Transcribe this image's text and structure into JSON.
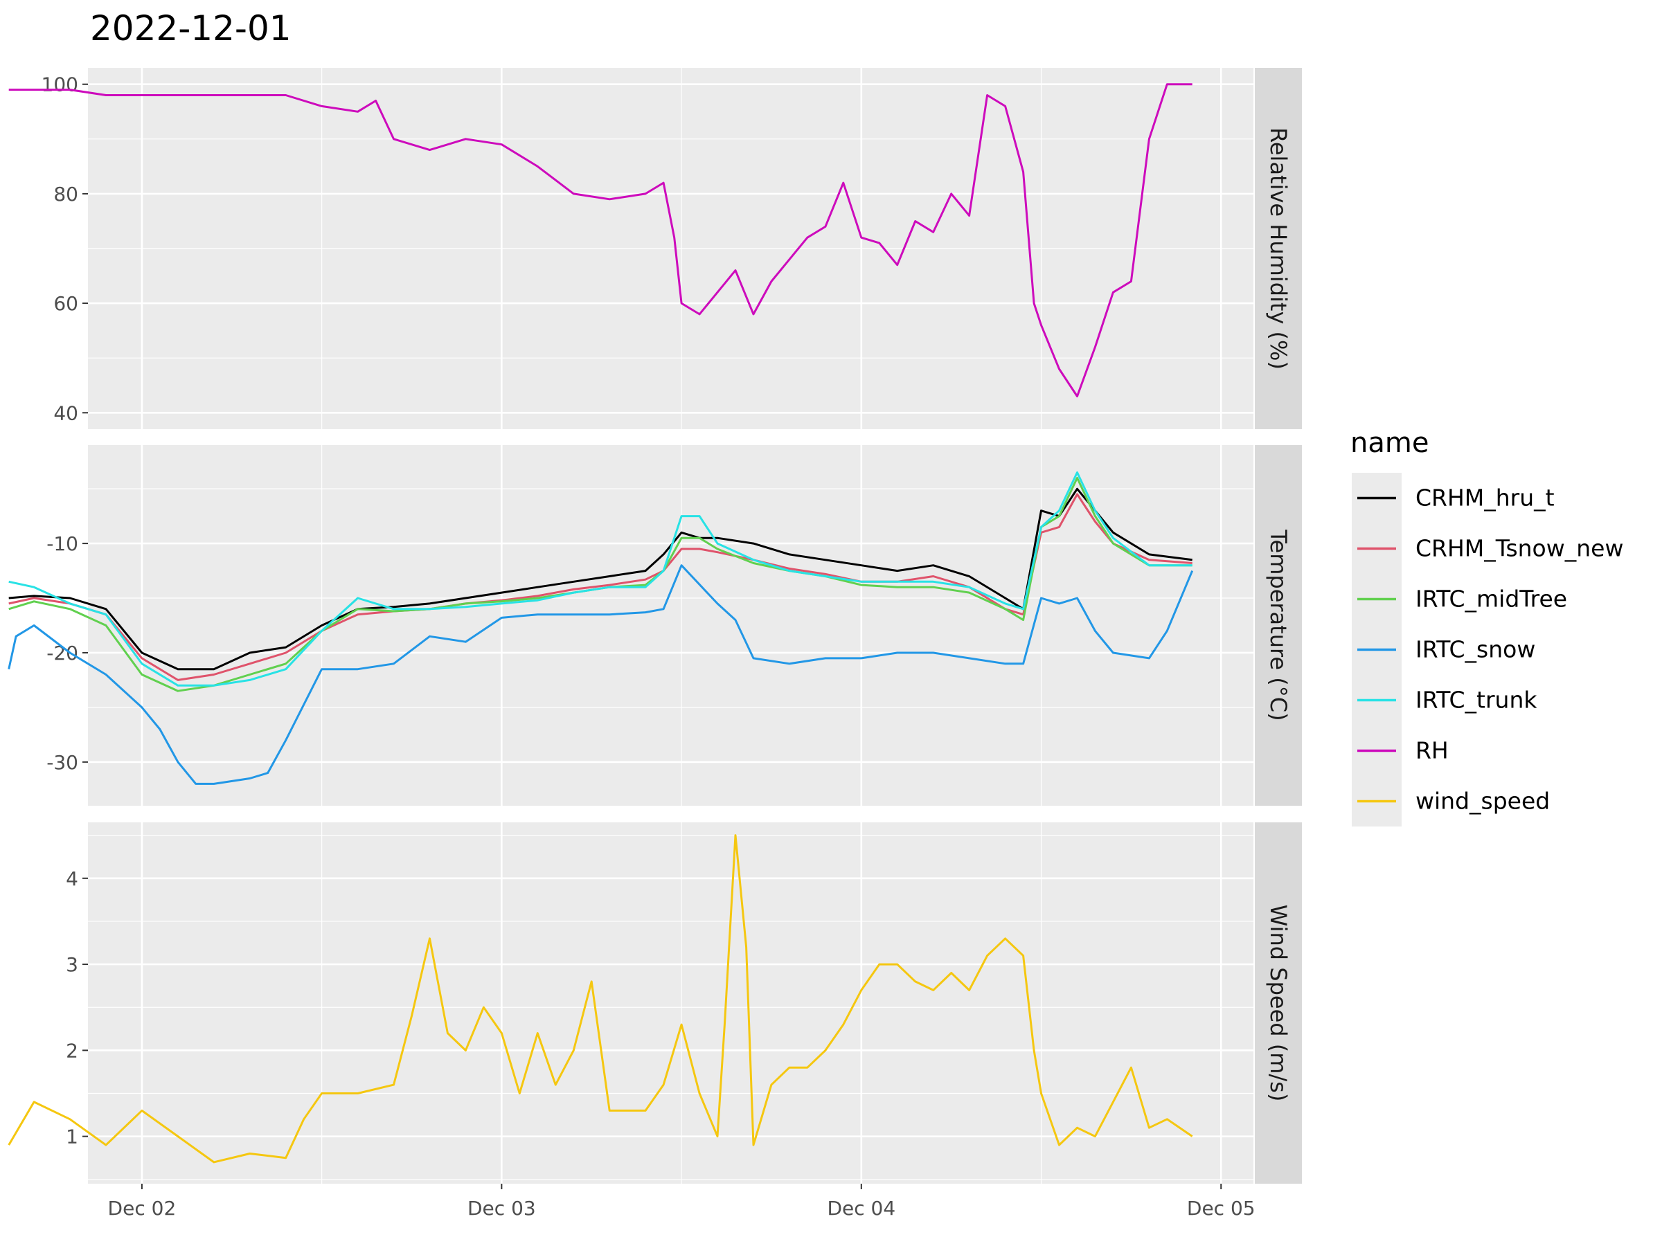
{
  "chart_data": {
    "type": "line",
    "title": "2022-12-01",
    "x_unit": "day",
    "x_ticks": [
      {
        "x": 2,
        "label": "Dec 02"
      },
      {
        "x": 3,
        "label": "Dec 03"
      },
      {
        "x": 4,
        "label": "Dec 04"
      },
      {
        "x": 5,
        "label": "Dec 05"
      }
    ],
    "xlim": [
      1.85,
      5.09
    ],
    "legend": {
      "title": "name",
      "position": "right"
    },
    "series_colors": {
      "CRHM_hru_t": "#000000",
      "CRHM_Tsnow_new": "#DF536B",
      "IRTC_midTree": "#61D04F",
      "IRTC_snow": "#2297E6",
      "IRTC_trunk": "#28E2E5",
      "RH": "#CD0BBC",
      "wind_speed": "#F5C710"
    },
    "legend_order": [
      "CRHM_hru_t",
      "CRHM_Tsnow_new",
      "IRTC_midTree",
      "IRTC_snow",
      "IRTC_trunk",
      "RH",
      "wind_speed"
    ],
    "panels": [
      {
        "strip": "Relative Humidity (%)",
        "ylim": [
          37,
          103
        ],
        "y_ticks": [
          40,
          60,
          80,
          100
        ],
        "series": [
          {
            "name": "RH",
            "x": [
              1.63,
              1.7,
              1.8,
              1.9,
              2.0,
              2.2,
              2.4,
              2.5,
              2.6,
              2.65,
              2.7,
              2.75,
              2.8,
              2.9,
              3.0,
              3.1,
              3.2,
              3.3,
              3.4,
              3.45,
              3.48,
              3.5,
              3.55,
              3.6,
              3.65,
              3.7,
              3.75,
              3.8,
              3.85,
              3.9,
              3.95,
              4.0,
              4.05,
              4.1,
              4.15,
              4.2,
              4.25,
              4.3,
              4.35,
              4.4,
              4.45,
              4.48,
              4.5,
              4.55,
              4.6,
              4.65,
              4.7,
              4.75,
              4.8,
              4.85,
              4.92
            ],
            "y": [
              99,
              99,
              99,
              98,
              98,
              98,
              98,
              96,
              95,
              97,
              90,
              89,
              88,
              90,
              89,
              85,
              80,
              79,
              80,
              82,
              72,
              60,
              58,
              62,
              66,
              58,
              64,
              68,
              72,
              74,
              82,
              72,
              71,
              67,
              75,
              73,
              80,
              76,
              98,
              96,
              84,
              60,
              56,
              48,
              43,
              52,
              62,
              64,
              90,
              100,
              100
            ]
          }
        ]
      },
      {
        "strip": "Temperature (°C)",
        "ylim": [
          -34,
          -1
        ],
        "y_ticks": [
          -30,
          -20,
          -10
        ],
        "series": [
          {
            "name": "CRHM_hru_t",
            "x": [
              1.63,
              1.7,
              1.8,
              1.9,
              2.0,
              2.1,
              2.2,
              2.3,
              2.4,
              2.5,
              2.6,
              2.7,
              2.8,
              2.9,
              3.0,
              3.1,
              3.2,
              3.3,
              3.4,
              3.45,
              3.5,
              3.55,
              3.6,
              3.7,
              3.8,
              3.9,
              4.0,
              4.1,
              4.2,
              4.3,
              4.4,
              4.45,
              4.5,
              4.55,
              4.6,
              4.65,
              4.7,
              4.8,
              4.92
            ],
            "y": [
              -15,
              -14.8,
              -15,
              -16,
              -20,
              -21.5,
              -21.5,
              -20,
              -19.5,
              -17.5,
              -16,
              -15.8,
              -15.5,
              -15,
              -14.5,
              -14,
              -13.5,
              -13,
              -12.5,
              -11,
              -9,
              -9.5,
              -9.5,
              -10,
              -11,
              -11.5,
              -12,
              -12.5,
              -12,
              -13,
              -15,
              -16,
              -7,
              -7.5,
              -5,
              -7,
              -9,
              -11,
              -11.5
            ]
          },
          {
            "name": "CRHM_Tsnow_new",
            "x": [
              1.63,
              1.7,
              1.8,
              1.9,
              2.0,
              2.1,
              2.2,
              2.3,
              2.4,
              2.5,
              2.6,
              2.7,
              2.8,
              2.9,
              3.0,
              3.1,
              3.2,
              3.3,
              3.4,
              3.45,
              3.5,
              3.55,
              3.6,
              3.7,
              3.8,
              3.9,
              4.0,
              4.1,
              4.2,
              4.3,
              4.4,
              4.45,
              4.5,
              4.55,
              4.6,
              4.65,
              4.7,
              4.8,
              4.92
            ],
            "y": [
              -15.5,
              -15,
              -15.5,
              -16.5,
              -20.5,
              -22.5,
              -22,
              -21,
              -20,
              -18,
              -16.5,
              -16.2,
              -16,
              -15.5,
              -15.2,
              -14.8,
              -14.2,
              -13.8,
              -13.3,
              -12.5,
              -10.5,
              -10.5,
              -10.8,
              -11.5,
              -12.3,
              -12.8,
              -13.5,
              -13.5,
              -13,
              -14,
              -16,
              -16.5,
              -9,
              -8.5,
              -5.5,
              -8,
              -10,
              -11.5,
              -11.8
            ]
          },
          {
            "name": "IRTC_midTree",
            "x": [
              1.63,
              1.7,
              1.8,
              1.9,
              2.0,
              2.1,
              2.2,
              2.3,
              2.4,
              2.5,
              2.6,
              2.7,
              2.8,
              2.9,
              3.0,
              3.1,
              3.2,
              3.3,
              3.4,
              3.45,
              3.5,
              3.55,
              3.6,
              3.7,
              3.8,
              3.9,
              4.0,
              4.1,
              4.2,
              4.3,
              4.4,
              4.45,
              4.5,
              4.55,
              4.6,
              4.65,
              4.7,
              4.8,
              4.92
            ],
            "y": [
              -16,
              -15.3,
              -16,
              -17.5,
              -22,
              -23.5,
              -23,
              -22,
              -21,
              -18,
              -16,
              -16.2,
              -16,
              -15.5,
              -15.3,
              -15,
              -14.5,
              -14,
              -13.8,
              -12.5,
              -9.5,
              -9.5,
              -10.5,
              -11.8,
              -12.5,
              -13,
              -13.8,
              -14,
              -14,
              -14.5,
              -16,
              -17,
              -8.5,
              -7.5,
              -4,
              -7.5,
              -10,
              -12,
              -12
            ]
          },
          {
            "name": "IRTC_snow",
            "x": [
              1.63,
              1.65,
              1.7,
              1.8,
              1.9,
              2.0,
              2.05,
              2.1,
              2.15,
              2.2,
              2.3,
              2.35,
              2.4,
              2.5,
              2.6,
              2.7,
              2.8,
              2.9,
              3.0,
              3.1,
              3.2,
              3.3,
              3.4,
              3.45,
              3.5,
              3.6,
              3.65,
              3.7,
              3.8,
              3.9,
              4.0,
              4.1,
              4.2,
              4.3,
              4.4,
              4.45,
              4.5,
              4.55,
              4.6,
              4.65,
              4.7,
              4.8,
              4.85,
              4.92
            ],
            "y": [
              -21.5,
              -18.5,
              -17.5,
              -20,
              -22,
              -25,
              -27,
              -30,
              -32,
              -32,
              -31.5,
              -31,
              -28,
              -21.5,
              -21.5,
              -21,
              -18.5,
              -19,
              -16.8,
              -16.5,
              -16.5,
              -16.5,
              -16.3,
              -16,
              -12,
              -15.5,
              -17,
              -20.5,
              -21,
              -20.5,
              -20.5,
              -20,
              -20,
              -20.5,
              -21,
              -21,
              -15,
              -15.5,
              -15,
              -18,
              -20,
              -20.5,
              -18,
              -12.5
            ]
          },
          {
            "name": "IRTC_trunk",
            "x": [
              1.63,
              1.7,
              1.8,
              1.9,
              2.0,
              2.1,
              2.2,
              2.3,
              2.4,
              2.5,
              2.6,
              2.7,
              2.8,
              2.9,
              3.0,
              3.1,
              3.2,
              3.3,
              3.4,
              3.45,
              3.5,
              3.55,
              3.6,
              3.7,
              3.8,
              3.9,
              4.0,
              4.1,
              4.2,
              4.3,
              4.4,
              4.45,
              4.5,
              4.55,
              4.6,
              4.65,
              4.7,
              4.8,
              4.92
            ],
            "y": [
              -13.5,
              -14,
              -15.5,
              -16.5,
              -21,
              -23,
              -23,
              -22.5,
              -21.5,
              -18,
              -15,
              -16,
              -16,
              -15.8,
              -15.5,
              -15.2,
              -14.5,
              -14,
              -14,
              -12.5,
              -7.5,
              -7.5,
              -10,
              -11.5,
              -12.5,
              -13,
              -13.5,
              -13.5,
              -13.5,
              -14,
              -15.5,
              -16,
              -8.5,
              -7,
              -3.5,
              -7,
              -9.5,
              -12,
              -12
            ]
          }
        ]
      },
      {
        "strip": "Wind Speed (m/s)",
        "ylim": [
          0.45,
          4.65
        ],
        "y_ticks": [
          1,
          2,
          3,
          4
        ],
        "series": [
          {
            "name": "wind_speed",
            "x": [
              1.63,
              1.7,
              1.8,
              1.9,
              2.0,
              2.1,
              2.2,
              2.3,
              2.4,
              2.45,
              2.5,
              2.6,
              2.7,
              2.75,
              2.8,
              2.85,
              2.9,
              2.95,
              3.0,
              3.05,
              3.1,
              3.15,
              3.2,
              3.25,
              3.3,
              3.35,
              3.4,
              3.45,
              3.5,
              3.55,
              3.6,
              3.62,
              3.65,
              3.68,
              3.7,
              3.75,
              3.8,
              3.85,
              3.9,
              3.95,
              4.0,
              4.05,
              4.1,
              4.15,
              4.2,
              4.25,
              4.3,
              4.35,
              4.4,
              4.45,
              4.48,
              4.5,
              4.55,
              4.6,
              4.65,
              4.7,
              4.75,
              4.8,
              4.85,
              4.92
            ],
            "y": [
              0.9,
              1.4,
              1.2,
              0.9,
              1.3,
              1.0,
              0.7,
              0.8,
              0.75,
              1.2,
              1.5,
              1.5,
              1.6,
              2.4,
              3.3,
              2.2,
              2.0,
              2.5,
              2.2,
              1.5,
              2.2,
              1.6,
              2.0,
              2.8,
              1.3,
              1.3,
              1.3,
              1.6,
              2.3,
              1.5,
              1.0,
              2.3,
              4.5,
              3.2,
              0.9,
              1.6,
              1.8,
              1.8,
              2.0,
              2.3,
              2.7,
              3.0,
              3.0,
              2.8,
              2.7,
              2.9,
              2.7,
              3.1,
              3.3,
              3.1,
              2.0,
              1.5,
              0.9,
              1.1,
              1.0,
              1.4,
              1.8,
              1.1,
              1.2,
              1.0
            ]
          }
        ]
      }
    ]
  }
}
